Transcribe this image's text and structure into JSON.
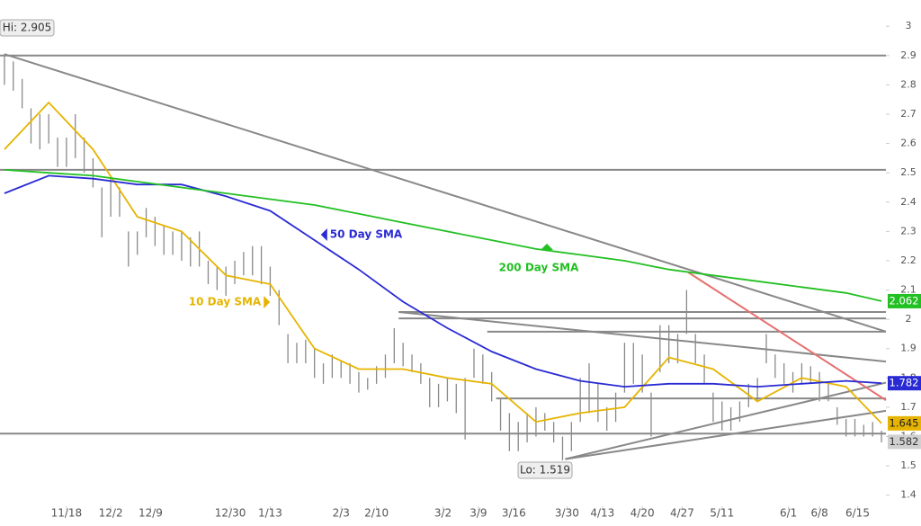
{
  "chart_data": {
    "type": "ohlc",
    "xlim": [
      -0.5,
      99.5
    ],
    "ylim": [
      1.3595,
      3.0436
    ],
    "yticks": [
      1.4,
      1.5,
      1.6,
      1.7,
      1.8,
      1.9,
      2,
      2.1,
      2.2,
      2.3,
      2.4,
      2.5,
      2.6,
      2.7,
      2.8,
      2.9,
      3
    ],
    "xticks": [
      {
        "value": 7,
        "label": "11/18"
      },
      {
        "value": 12,
        "label": "12/2"
      },
      {
        "value": 16.5,
        "label": "12/9"
      },
      {
        "value": 25.5,
        "label": "12/30"
      },
      {
        "value": 30,
        "label": "1/13"
      },
      {
        "value": 38,
        "label": "2/3"
      },
      {
        "value": 42,
        "label": "2/10"
      },
      {
        "value": 49.5,
        "label": "3/2"
      },
      {
        "value": 53.5,
        "label": "3/9"
      },
      {
        "value": 57.5,
        "label": "3/16"
      },
      {
        "value": 63.5,
        "label": "3/30"
      },
      {
        "value": 67.5,
        "label": "4/13"
      },
      {
        "value": 72,
        "label": "4/20"
      },
      {
        "value": 76.5,
        "label": "4/27"
      },
      {
        "value": 81,
        "label": "5/11"
      },
      {
        "value": 88.5,
        "label": "6/1"
      },
      {
        "value": 92,
        "label": "6/8"
      },
      {
        "value": 96.3,
        "label": "6/15"
      }
    ],
    "bar_color": "#8a8a8a",
    "bars": {
      "high": [
        2.905,
        2.88,
        2.82,
        2.72,
        2.7,
        2.7,
        2.62,
        2.62,
        2.7,
        2.62,
        2.55,
        2.45,
        2.48,
        2.45,
        2.3,
        2.3,
        2.38,
        2.35,
        2.32,
        2.3,
        2.3,
        2.28,
        2.3,
        2.2,
        2.18,
        2.18,
        2.2,
        2.23,
        2.25,
        2.25,
        2.18,
        2.1,
        1.95,
        1.92,
        1.93,
        1.9,
        1.85,
        1.88,
        1.86,
        1.85,
        1.82,
        1.8,
        1.84,
        1.88,
        1.97,
        1.92,
        1.88,
        1.85,
        1.8,
        1.78,
        1.8,
        1.78,
        1.8,
        1.9,
        1.88,
        1.82,
        1.73,
        1.68,
        1.65,
        1.68,
        1.7,
        1.68,
        1.65,
        1.6,
        1.65,
        1.8,
        1.85,
        1.78,
        1.7,
        1.75,
        1.92,
        1.92,
        1.88,
        1.75,
        1.98,
        1.98,
        1.95,
        2.1,
        1.95,
        1.88,
        1.75,
        1.72,
        1.7,
        1.72,
        1.78,
        1.8,
        1.95,
        1.88,
        1.85,
        1.82,
        1.85,
        1.84,
        1.82,
        1.78,
        1.7,
        1.66,
        1.66,
        1.64,
        1.65,
        1.62
      ],
      "low": [
        2.8,
        2.78,
        2.72,
        2.6,
        2.58,
        2.6,
        2.52,
        2.52,
        2.55,
        2.5,
        2.45,
        2.28,
        2.35,
        2.35,
        2.18,
        2.22,
        2.28,
        2.25,
        2.22,
        2.22,
        2.2,
        2.18,
        2.18,
        2.12,
        2.1,
        2.08,
        2.12,
        2.15,
        2.15,
        2.12,
        2.08,
        1.98,
        1.85,
        1.85,
        1.85,
        1.8,
        1.78,
        1.8,
        1.8,
        1.78,
        1.75,
        1.76,
        1.78,
        1.8,
        1.85,
        1.84,
        1.82,
        1.78,
        1.7,
        1.7,
        1.72,
        1.68,
        1.59,
        1.8,
        1.78,
        1.72,
        1.62,
        1.55,
        1.55,
        1.58,
        1.6,
        1.62,
        1.58,
        1.519,
        1.55,
        1.65,
        1.68,
        1.65,
        1.62,
        1.65,
        1.75,
        1.78,
        1.75,
        1.6,
        1.82,
        1.85,
        1.85,
        1.95,
        1.85,
        1.78,
        1.65,
        1.62,
        1.62,
        1.65,
        1.7,
        1.72,
        1.85,
        1.8,
        1.78,
        1.75,
        1.78,
        1.78,
        1.72,
        1.72,
        1.64,
        1.6,
        1.6,
        1.6,
        1.6,
        1.58
      ]
    },
    "series": [
      {
        "name": "10 Day SMA",
        "color": "#e6b400",
        "x": [
          0,
          5,
          10,
          15,
          20,
          25,
          30,
          35,
          40,
          45,
          50,
          55,
          60,
          65,
          70,
          75,
          80,
          85,
          90,
          95,
          99
        ],
        "values": [
          2.58,
          2.74,
          2.58,
          2.35,
          2.3,
          2.15,
          2.12,
          1.9,
          1.83,
          1.83,
          1.8,
          1.78,
          1.65,
          1.68,
          1.7,
          1.87,
          1.83,
          1.72,
          1.8,
          1.77,
          1.645
        ]
      },
      {
        "name": "50 Day SMA",
        "color": "#2a2ad4",
        "x": [
          0,
          5,
          10,
          15,
          20,
          25,
          30,
          35,
          40,
          45,
          50,
          55,
          60,
          65,
          70,
          75,
          80,
          85,
          90,
          95,
          99
        ],
        "values": [
          2.43,
          2.49,
          2.48,
          2.46,
          2.46,
          2.42,
          2.37,
          2.27,
          2.17,
          2.06,
          1.97,
          1.89,
          1.83,
          1.79,
          1.77,
          1.78,
          1.78,
          1.77,
          1.78,
          1.79,
          1.782
        ]
      },
      {
        "name": "200 Day SMA",
        "color": "#22c022",
        "x": [
          0,
          5,
          10,
          15,
          20,
          25,
          30,
          35,
          40,
          45,
          50,
          55,
          60,
          65,
          70,
          75,
          80,
          85,
          90,
          95,
          99
        ],
        "values": [
          2.51,
          2.5,
          2.49,
          2.47,
          2.45,
          2.43,
          2.41,
          2.39,
          2.36,
          2.33,
          2.3,
          2.27,
          2.24,
          2.22,
          2.2,
          2.17,
          2.15,
          2.13,
          2.11,
          2.09,
          2.062
        ]
      }
    ],
    "last_price": 1.582,
    "hi_label": "Hi: 2.905",
    "lo_label": "Lo: 1.519",
    "trendlines": [
      {
        "x": [
          -0.5,
          99.5
        ],
        "y": [
          2.9,
          2.9
        ],
        "color": "#888888"
      },
      {
        "x": [
          -0.5,
          99.5
        ],
        "y": [
          2.51,
          2.51
        ],
        "color": "#888888"
      },
      {
        "x": [
          -0.5,
          99.5
        ],
        "y": [
          1.61,
          1.61
        ],
        "color": "#888888"
      },
      {
        "x": [
          44.5,
          99.5
        ],
        "y": [
          2.025,
          2.025
        ],
        "color": "#888888"
      },
      {
        "x": [
          44.5,
          99.5
        ],
        "y": [
          2.003,
          2.003
        ],
        "color": "#888888"
      },
      {
        "x": [
          54.5,
          99.5
        ],
        "y": [
          1.958,
          1.958
        ],
        "color": "#888888"
      },
      {
        "x": [
          55.5,
          99.5
        ],
        "y": [
          1.73,
          1.73
        ],
        "color": "#888888"
      },
      {
        "x": [
          0,
          99.5
        ],
        "y": [
          2.905,
          1.958
        ],
        "color": "#888888"
      },
      {
        "x": [
          44.5,
          99.5
        ],
        "y": [
          2.025,
          1.856
        ],
        "color": "#888888"
      },
      {
        "x": [
          63.3,
          99.5
        ],
        "y": [
          1.523,
          1.784
        ],
        "color": "#888888"
      },
      {
        "x": [
          63.3,
          99.5
        ],
        "y": [
          1.523,
          1.688
        ],
        "color": "#888888"
      },
      {
        "x": [
          77.2,
          99.5
        ],
        "y": [
          2.16,
          1.724
        ],
        "color": "#e87070"
      }
    ]
  }
}
